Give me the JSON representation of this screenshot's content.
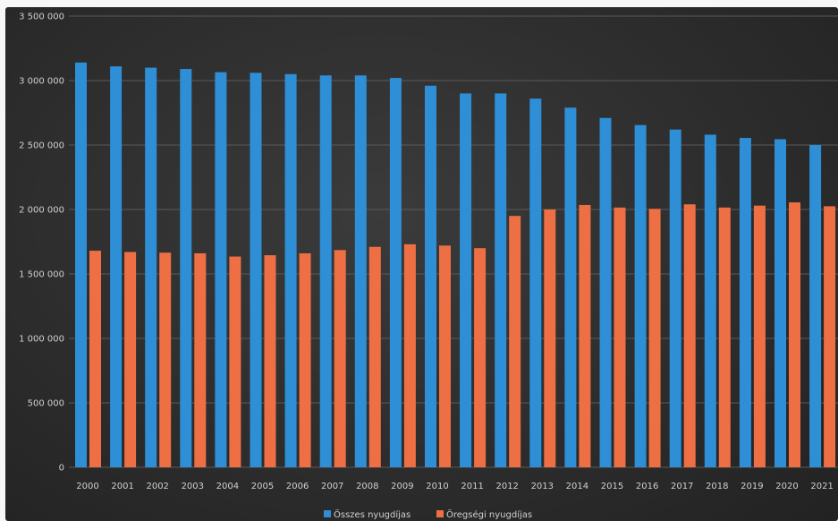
{
  "chart_data": {
    "type": "bar",
    "title": "",
    "xlabel": "",
    "ylabel": "",
    "ylim": [
      0,
      3500000
    ],
    "y_ticks": [
      0,
      500000,
      1000000,
      1500000,
      2000000,
      2500000,
      3000000,
      3500000
    ],
    "y_tick_labels": [
      "0",
      "500 000",
      "1 000 000",
      "1 500 000",
      "2 000 000",
      "2 500 000",
      "3 000 000",
      "3 500 000"
    ],
    "grid": true,
    "legend_position": "bottom",
    "categories": [
      "2000",
      "2001",
      "2002",
      "2003",
      "2004",
      "2005",
      "2006",
      "2007",
      "2008",
      "2009",
      "2010",
      "2011",
      "2012",
      "2013",
      "2014",
      "2015",
      "2016",
      "2017",
      "2018",
      "2019",
      "2020",
      "2021"
    ],
    "series": [
      {
        "name": "Összes nyugdíjas",
        "color": "#2e8fd6",
        "values": [
          3140000,
          3110000,
          3100000,
          3090000,
          3065000,
          3060000,
          3050000,
          3040000,
          3040000,
          3020000,
          2960000,
          2900000,
          2900000,
          2860000,
          2790000,
          2710000,
          2655000,
          2620000,
          2580000,
          2555000,
          2545000,
          2500000
        ]
      },
      {
        "name": "Öregségi nyugdíjas",
        "color": "#ee6f44",
        "values": [
          1680000,
          1670000,
          1665000,
          1660000,
          1635000,
          1645000,
          1660000,
          1685000,
          1710000,
          1730000,
          1720000,
          1700000,
          1950000,
          2000000,
          2035000,
          2015000,
          2005000,
          2040000,
          2015000,
          2030000,
          2055000,
          2025000
        ]
      }
    ]
  }
}
